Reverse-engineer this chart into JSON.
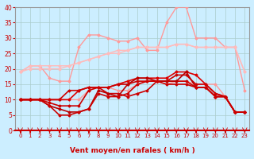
{
  "xlabel": "Vent moyen/en rafales ( km/h )",
  "xlim": [
    -0.5,
    23.5
  ],
  "ylim": [
    0,
    40
  ],
  "yticks": [
    0,
    5,
    10,
    15,
    20,
    25,
    30,
    35,
    40
  ],
  "xticks": [
    0,
    1,
    2,
    3,
    4,
    5,
    6,
    7,
    8,
    9,
    10,
    11,
    12,
    13,
    14,
    15,
    16,
    17,
    18,
    19,
    20,
    21,
    22,
    23
  ],
  "bg_color": "#cceeff",
  "grid_color": "#aacccc",
  "series": [
    {
      "y": [
        19,
        21,
        21,
        17,
        16,
        16,
        27,
        31,
        31,
        30,
        29,
        29,
        30,
        26,
        26,
        35,
        40,
        40,
        30,
        30,
        30,
        27,
        27,
        13
      ],
      "color": "#ff9999",
      "lw": 1.0
    },
    {
      "y": [
        19,
        21,
        21,
        21,
        21,
        21,
        22,
        23,
        24,
        25,
        26,
        26,
        27,
        27,
        27,
        27,
        28,
        28,
        27,
        27,
        27,
        27,
        27,
        19
      ],
      "color": "#ffbbbb",
      "lw": 1.0
    },
    {
      "y": [
        19,
        20,
        20,
        20,
        20,
        21,
        22,
        23,
        24,
        25,
        25,
        26,
        27,
        27,
        27,
        27,
        28,
        28,
        27,
        27,
        27,
        27,
        27,
        19
      ],
      "color": "#ffbbbb",
      "lw": 1.0
    },
    {
      "y": [
        10,
        10,
        10,
        10,
        10,
        10,
        10,
        13,
        14,
        14,
        13,
        13,
        15,
        16,
        16,
        15,
        16,
        16,
        15,
        15,
        15,
        11,
        6,
        6
      ],
      "color": "#ff9999",
      "lw": 1.0
    },
    {
      "y": [
        10,
        10,
        10,
        10,
        10,
        10,
        13,
        14,
        14,
        14,
        15,
        16,
        17,
        17,
        17,
        17,
        19,
        19,
        18,
        15,
        12,
        11,
        6,
        6
      ],
      "color": "#dd0000",
      "lw": 1.2
    },
    {
      "y": [
        10,
        10,
        10,
        10,
        10,
        13,
        13,
        14,
        14,
        14,
        15,
        15,
        16,
        16,
        16,
        16,
        18,
        18,
        15,
        15,
        12,
        11,
        6,
        6
      ],
      "color": "#cc0000",
      "lw": 1.2
    },
    {
      "y": [
        10,
        10,
        10,
        9,
        8,
        8,
        8,
        13,
        14,
        12,
        12,
        11,
        12,
        13,
        16,
        16,
        16,
        16,
        14,
        14,
        11,
        11,
        6,
        6
      ],
      "color": "#cc0000",
      "lw": 1.2
    },
    {
      "y": [
        10,
        10,
        10,
        8,
        7,
        6,
        6,
        7,
        13,
        12,
        11,
        15,
        17,
        17,
        16,
        16,
        16,
        19,
        14,
        14,
        11,
        11,
        6,
        6
      ],
      "color": "#bb0000",
      "lw": 1.2
    },
    {
      "y": [
        10,
        10,
        10,
        8,
        5,
        5,
        6,
        7,
        12,
        11,
        11,
        12,
        15,
        16,
        16,
        15,
        15,
        15,
        14,
        14,
        11,
        11,
        6,
        6
      ],
      "color": "#cc0000",
      "lw": 1.2
    }
  ]
}
